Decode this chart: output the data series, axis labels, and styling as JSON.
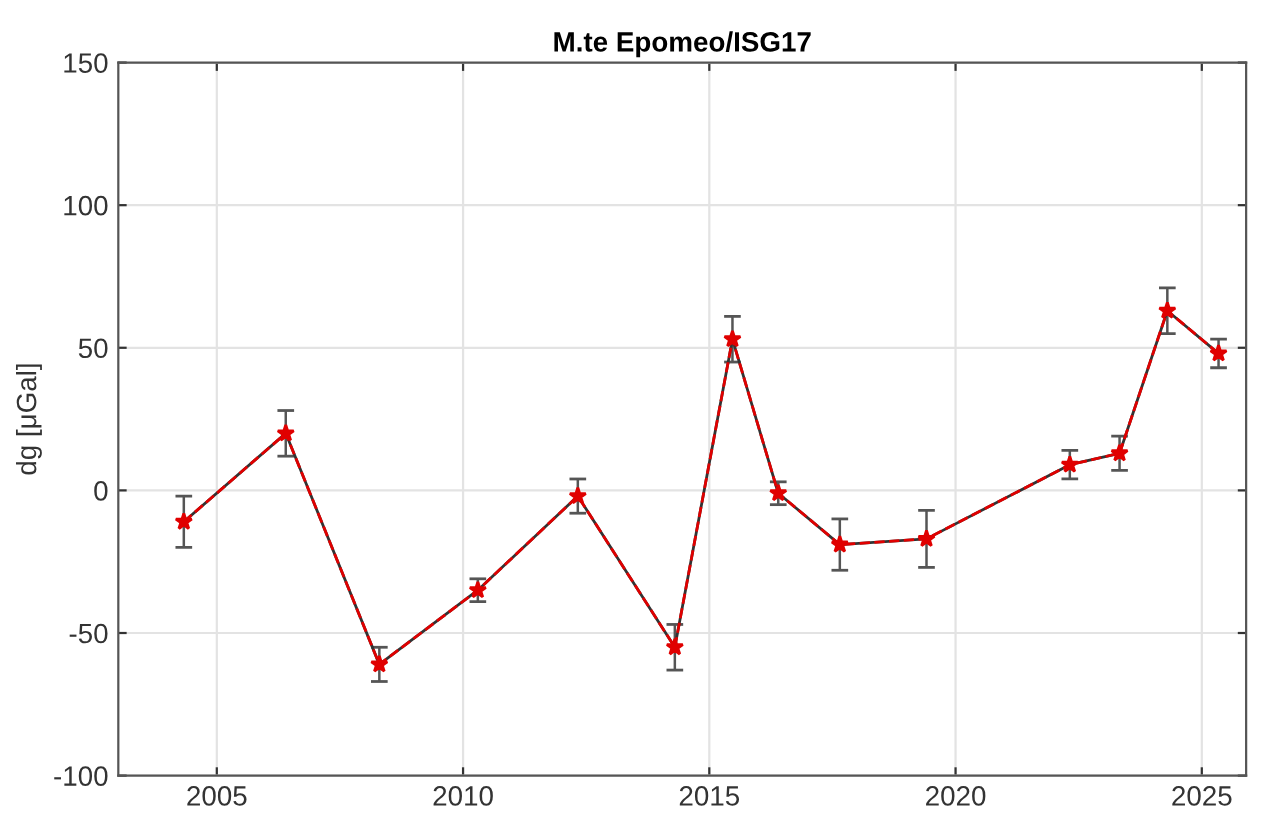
{
  "chart_data": {
    "type": "line",
    "title": "M.te Epomeo/ISG17",
    "ylabel": "dg [μGal]",
    "x": [
      2004.33,
      2006.4,
      2008.3,
      2010.3,
      2012.33,
      2014.3,
      2015.47,
      2016.4,
      2017.65,
      2019.41,
      2022.32,
      2023.33,
      2024.3,
      2025.34
    ],
    "series": [
      {
        "color": "#e00000",
        "values": [
          -11,
          20,
          -61,
          -35,
          -2,
          -55,
          53,
          -1,
          -19,
          -17,
          9,
          13,
          63,
          48
        ],
        "errors": [
          9,
          8,
          6,
          4,
          6,
          8,
          8,
          4,
          9,
          10,
          5,
          6,
          8,
          5
        ]
      }
    ],
    "xlim": [
      2003,
      2025.9
    ],
    "xticks": [
      2005,
      2010,
      2015,
      2020,
      2025
    ],
    "ylim": [
      -100,
      150
    ],
    "yticks": [
      -100,
      -50,
      0,
      50,
      100,
      150
    ],
    "grid": true,
    "marker": "star",
    "line_style": "dashed"
  }
}
